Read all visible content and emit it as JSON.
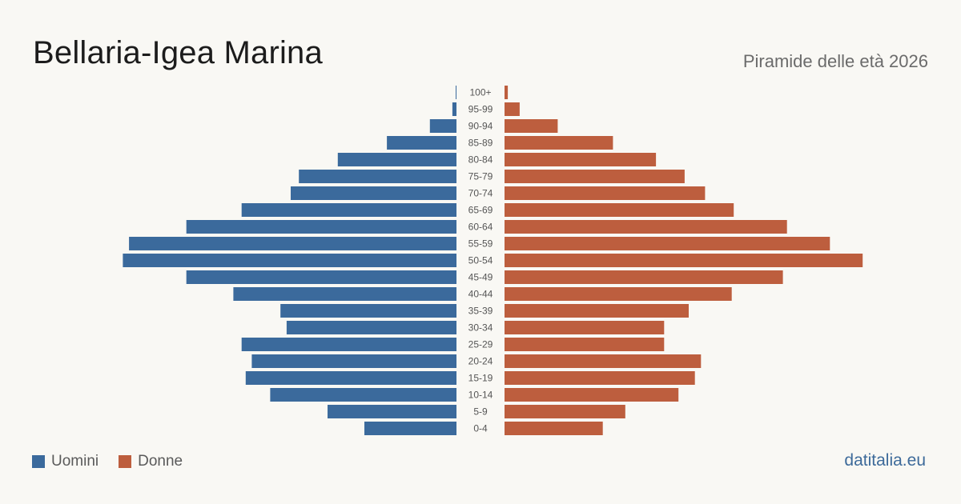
{
  "header": {
    "title": "Bellaria-Igea Marina",
    "subtitle": "Piramide delle età 2026"
  },
  "colors": {
    "men": "#3b6a9c",
    "women": "#bd5e3e",
    "label": "#555555"
  },
  "legend": {
    "men_label": "Uomini",
    "women_label": "Donne"
  },
  "footer": {
    "site": "datitalia.eu"
  },
  "chart_data": {
    "type": "bar",
    "orientation": "horizontal-pyramid",
    "categories": [
      "100+",
      "95-99",
      "90-94",
      "85-89",
      "80-84",
      "75-79",
      "70-74",
      "65-69",
      "60-64",
      "55-59",
      "50-54",
      "45-49",
      "40-44",
      "35-39",
      "30-34",
      "25-29",
      "20-24",
      "15-19",
      "10-14",
      "5-9",
      "0-4"
    ],
    "series": [
      {
        "name": "Uomini",
        "values": [
          2,
          10,
          65,
          170,
          290,
          385,
          405,
          525,
          660,
          800,
          815,
          660,
          545,
          430,
          415,
          525,
          500,
          515,
          455,
          315,
          225
        ]
      },
      {
        "name": "Donne",
        "values": [
          8,
          37,
          130,
          265,
          370,
          440,
          490,
          560,
          690,
          795,
          875,
          680,
          555,
          450,
          390,
          390,
          480,
          465,
          425,
          295,
          240
        ]
      }
    ],
    "xlim": [
      0,
      900
    ],
    "legend_position": "bottom-left",
    "grid": false
  }
}
